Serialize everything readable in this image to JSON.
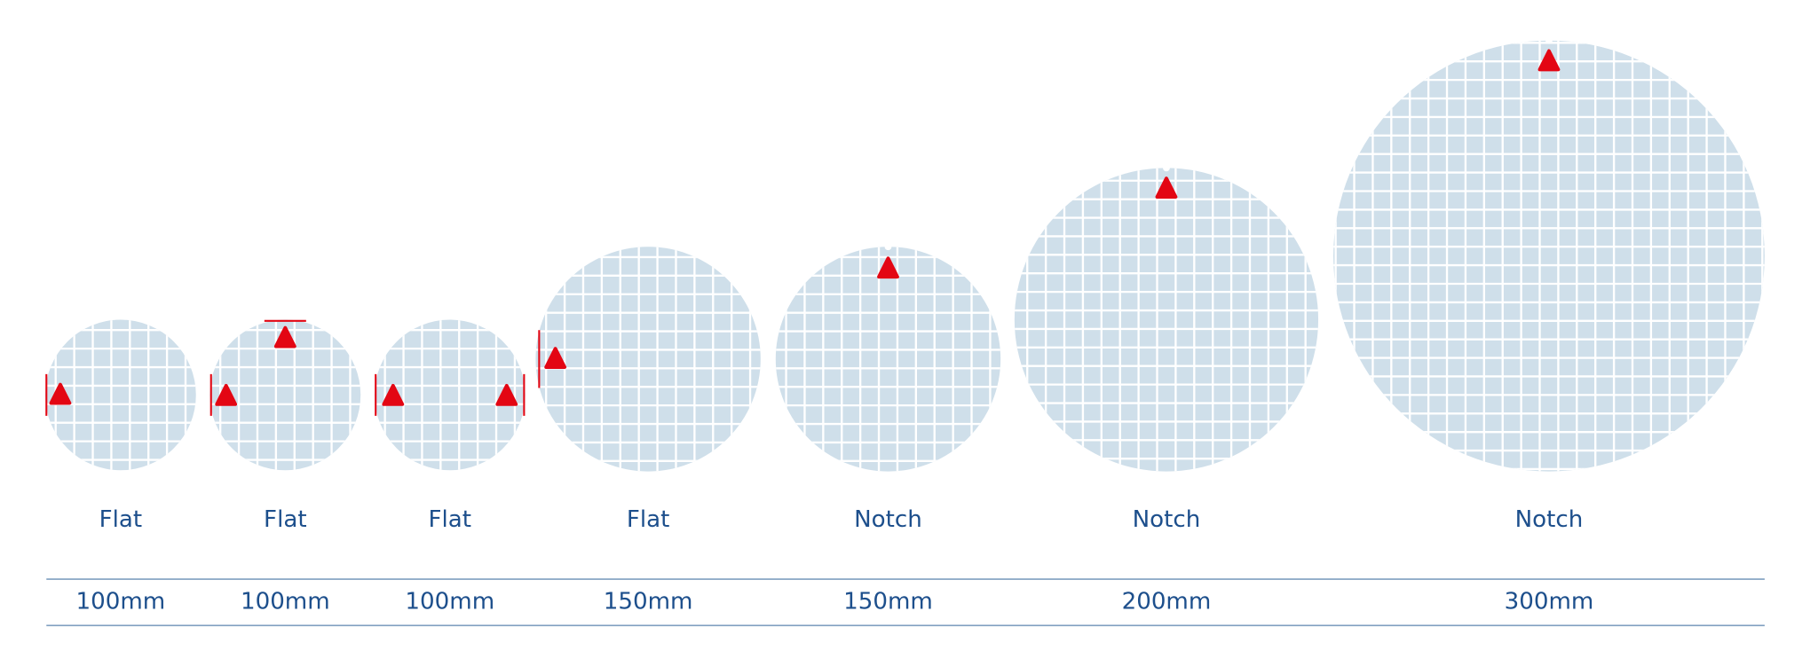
{
  "wafers": [
    {
      "type": "Flat",
      "size": "100mm"
    },
    {
      "type": "Flat",
      "size": "100mm"
    },
    {
      "type": "Flat",
      "size": "100mm"
    },
    {
      "type": "Flat",
      "size": "150mm"
    },
    {
      "type": "Notch",
      "size": "150mm"
    },
    {
      "type": "Notch",
      "size": "200mm"
    },
    {
      "type": "Notch",
      "size": "300mm"
    }
  ]
}
